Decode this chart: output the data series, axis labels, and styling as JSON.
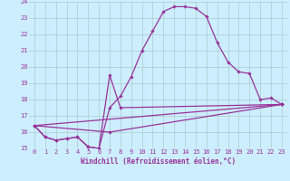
{
  "xlabel": "Windchill (Refroidissement éolien,°C)",
  "bg_color": "#cceeff",
  "grid_color": "#aacccc",
  "line_color": "#993399",
  "xlim": [
    -0.5,
    23.5
  ],
  "ylim": [
    15,
    24
  ],
  "xticks": [
    0,
    1,
    2,
    3,
    4,
    5,
    6,
    7,
    8,
    9,
    10,
    11,
    12,
    13,
    14,
    15,
    16,
    17,
    18,
    19,
    20,
    21,
    22,
    23
  ],
  "yticks": [
    15,
    16,
    17,
    18,
    19,
    20,
    21,
    22,
    23,
    24
  ],
  "line1_x": [
    0,
    1,
    2,
    3,
    4,
    5,
    6,
    7,
    8,
    9,
    10,
    11,
    12,
    13,
    14,
    15,
    16,
    17,
    18,
    19,
    20,
    21,
    22,
    23
  ],
  "line1_y": [
    16.4,
    15.7,
    15.5,
    15.6,
    15.7,
    15.1,
    15.0,
    17.5,
    18.2,
    19.4,
    21.0,
    22.2,
    23.4,
    23.7,
    23.7,
    23.6,
    23.1,
    21.5,
    20.3,
    19.7,
    19.6,
    18.0,
    18.1,
    17.7
  ],
  "line2_x": [
    0,
    1,
    2,
    3,
    4,
    5,
    6,
    7,
    8,
    23
  ],
  "line2_y": [
    16.4,
    15.7,
    15.5,
    15.6,
    15.7,
    15.1,
    15.0,
    19.5,
    17.5,
    17.7
  ],
  "line3_x": [
    0,
    7,
    23
  ],
  "line3_y": [
    16.4,
    16.0,
    17.7
  ],
  "line4_x": [
    0,
    23
  ],
  "line4_y": [
    16.4,
    17.7
  ]
}
